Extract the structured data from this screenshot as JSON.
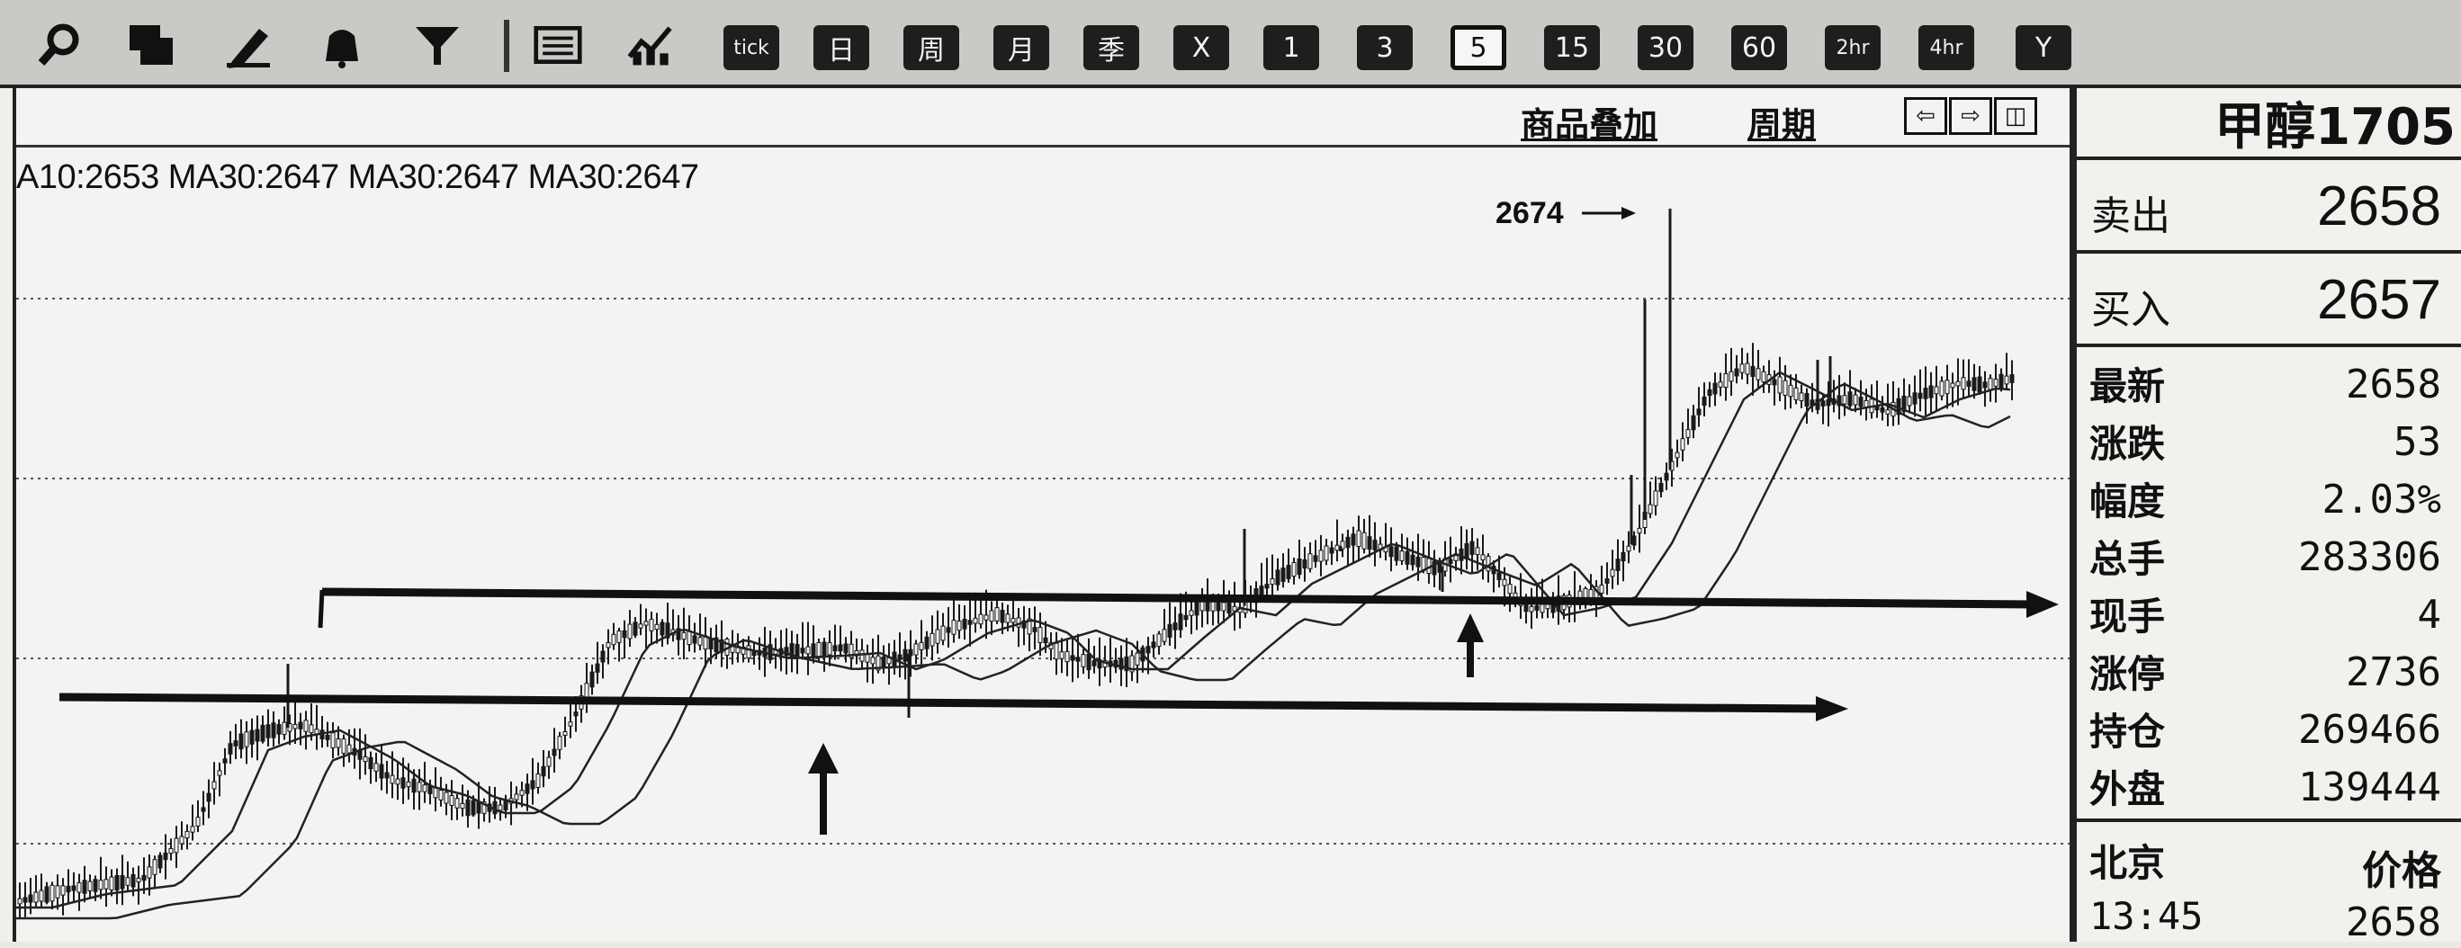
{
  "toolbar": {
    "tool_icons": [
      "search-icon",
      "layers-icon",
      "pencil-icon",
      "bell-icon",
      "filter-icon"
    ],
    "view_icons": [
      "list-icon",
      "indicator-chart-icon"
    ],
    "periods": [
      "tick",
      "日",
      "周",
      "月",
      "季",
      "X",
      "1",
      "3",
      "5",
      "15",
      "30",
      "60",
      "2hr",
      "4hr",
      "Y"
    ],
    "active_period": "5"
  },
  "chart": {
    "overlay_label": "商品叠加",
    "period_label": "周期",
    "nav": [
      "⇦",
      "⇨",
      "◫"
    ],
    "ma_text": "A10:2653 MA30:2647 MA30:2647 MA30:2647",
    "high_annotation": "2674"
  },
  "quote": {
    "title": "甲醇1705",
    "sell_label": "卖出",
    "sell_value": "2658",
    "buy_label": "买入",
    "buy_value": "2657",
    "rows": [
      {
        "label": "最新",
        "value": "2658"
      },
      {
        "label": "涨跌",
        "value": "53"
      },
      {
        "label": "幅度",
        "value": "2.03%"
      },
      {
        "label": "总手",
        "value": "283306"
      },
      {
        "label": "现手",
        "value": "4"
      },
      {
        "label": "涨停",
        "value": "2736"
      },
      {
        "label": "持仓",
        "value": "269466"
      },
      {
        "label": "外盘",
        "value": "139444"
      }
    ],
    "city_label": "北京",
    "price_label": "价格",
    "time": "13:45",
    "time_price": "2658"
  },
  "colors": {
    "background": "#efefeb",
    "ink": "#111111",
    "toolbar": "#c9c9c6"
  }
}
